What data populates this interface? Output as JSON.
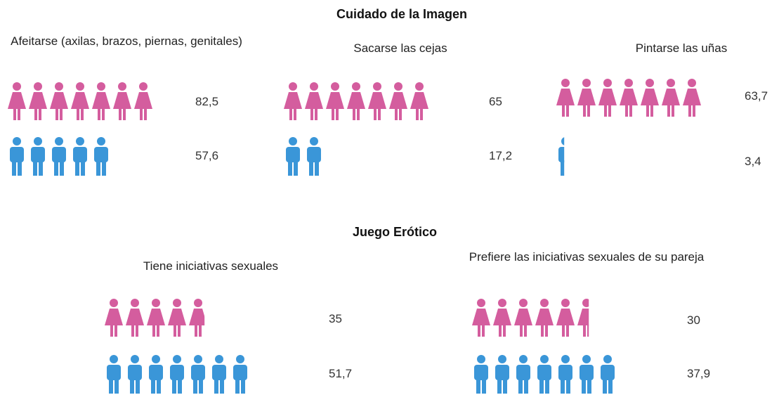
{
  "headings": [
    "Cuidado de la Imagen",
    "Juego Erótico"
  ],
  "chart_data": [
    {
      "type": "pictograph",
      "title": "Afeitarse (axilas, brazos, piernas, genitales)",
      "values": [
        82.5,
        57.6
      ],
      "value_labels": [
        "82,5",
        "57,6"
      ],
      "colors": [
        "#d45d9e",
        "#3a96d8"
      ]
    },
    {
      "type": "pictograph",
      "title": "Sacarse las cejas",
      "values": [
        65,
        17.2
      ],
      "value_labels": [
        "65",
        "17,2"
      ],
      "colors": [
        "#d45d9e",
        "#3a96d8"
      ]
    },
    {
      "type": "pictograph",
      "title": "Pintarse las uñas",
      "values": [
        63.7,
        3.4
      ],
      "value_labels": [
        "63,7",
        "3,4"
      ],
      "colors": [
        "#d45d9e",
        "#3a96d8"
      ]
    },
    {
      "type": "pictograph",
      "title": "Tiene iniciativas sexuales",
      "values": [
        35,
        51.7
      ],
      "value_labels": [
        "35",
        "51,7"
      ],
      "colors": [
        "#d45d9e",
        "#3a96d8"
      ]
    },
    {
      "type": "pictograph",
      "title": "Prefiere las iniciativas sexuales de su pareja",
      "values": [
        30,
        37.9
      ],
      "value_labels": [
        "30",
        "37,9"
      ],
      "colors": [
        "#d45d9e",
        "#3a96d8"
      ]
    }
  ]
}
